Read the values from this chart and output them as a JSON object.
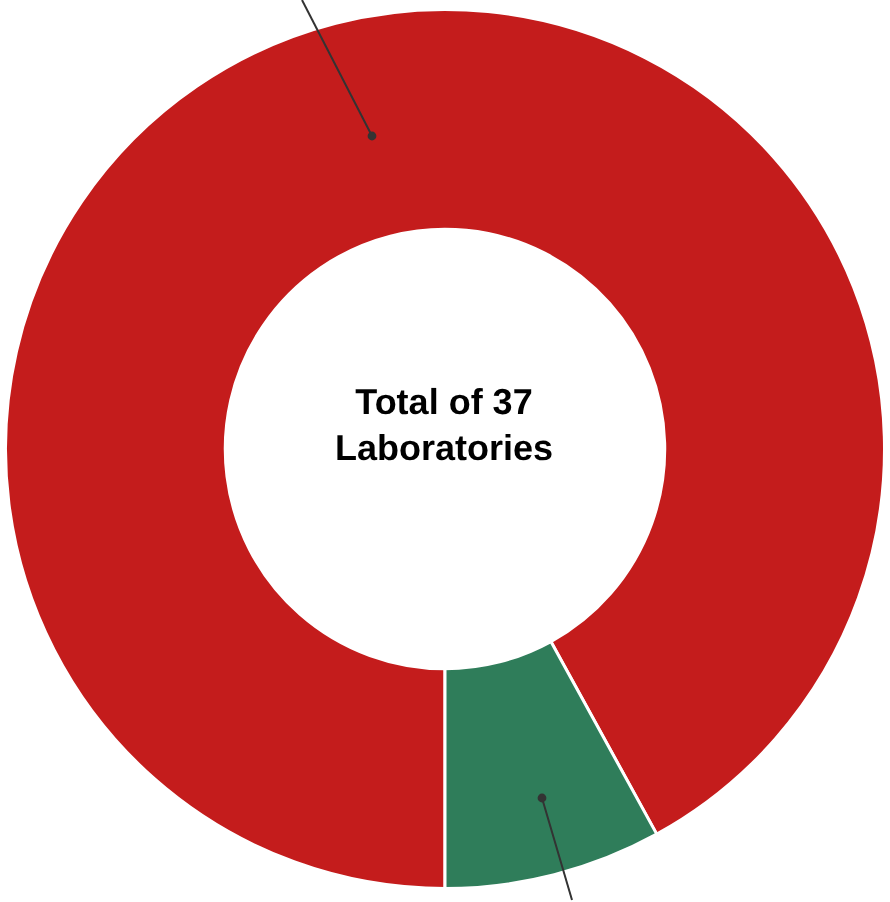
{
  "chart_data": {
    "type": "donut",
    "title": "Total of 37 Laboratories",
    "categories": [
      null,
      null
    ],
    "values": [
      92,
      8
    ],
    "colors": [
      "#c41c1c",
      "#2f7d5a"
    ]
  }
}
